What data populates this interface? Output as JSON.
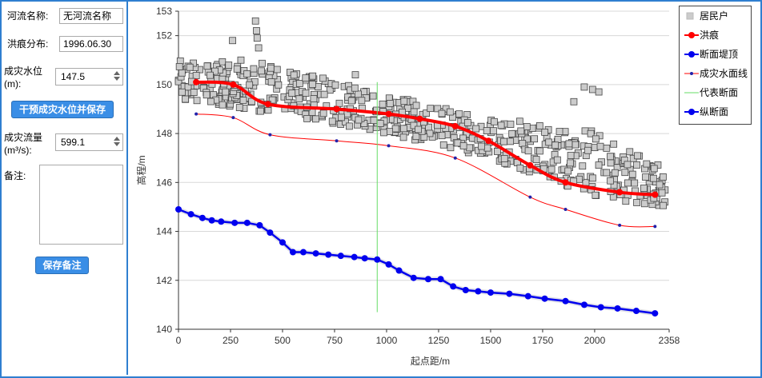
{
  "form": {
    "river_name_label": "河流名称:",
    "river_name_value": "无河流名称",
    "flood_mark_label": "洪痕分布:",
    "flood_mark_value": "1996.06.30",
    "disaster_level_label": "成灾水位",
    "disaster_level_unit": "(m):",
    "disaster_level_value": "147.5",
    "intervene_button": "干预成灾水位并保存",
    "disaster_flow_label": "成灾流量",
    "disaster_flow_unit": "(m³/s):",
    "disaster_flow_value": "599.1",
    "remark_label": "备注:",
    "save_remark_button": "保存备注"
  },
  "colors": {
    "border": "#2f7fd0",
    "flood_mark": "#ff0000",
    "embankment": "#0000ee",
    "water_surface": "#ff0000",
    "rep_section": "#66dd66",
    "profile": "#0000ee",
    "resident": "#cccccc"
  },
  "chart_data": {
    "type": "line",
    "title": "",
    "xlabel": "起点距/m",
    "ylabel": "高程/m",
    "xlim": [
      0,
      2358
    ],
    "ylim": [
      140,
      153
    ],
    "xticks": [
      0,
      250,
      500,
      750,
      1000,
      1250,
      1500,
      1750,
      2000,
      2358
    ],
    "yticks": [
      140,
      142,
      144,
      146,
      148,
      150,
      152,
      153
    ],
    "legend": [
      "居民户",
      "洪痕",
      "断面堤顶",
      "成灾水面线",
      "代表断面",
      "纵断面"
    ],
    "flood_marks": {
      "name": "洪痕",
      "x": [
        85,
        263,
        430,
        760,
        1010,
        1160,
        1330,
        1490,
        1690,
        1860,
        2120,
        2290
      ],
      "y": [
        150.1,
        150.0,
        149.2,
        149.0,
        148.8,
        148.6,
        148.3,
        147.7,
        146.7,
        146.0,
        145.6,
        145.5
      ]
    },
    "water_surface": {
      "name": "成灾水面线",
      "x": [
        85,
        263,
        440,
        760,
        1010,
        1330,
        1690,
        1860,
        2120,
        2290
      ],
      "y": [
        148.8,
        148.65,
        147.95,
        147.7,
        147.5,
        147.0,
        145.4,
        144.9,
        144.25,
        144.2
      ]
    },
    "representative_section": {
      "name": "代表断面",
      "x": 955,
      "y_range": [
        140.7,
        150.1
      ]
    },
    "profile": {
      "name": "纵断面",
      "x": [
        0,
        60,
        115,
        160,
        205,
        270,
        330,
        390,
        440,
        500,
        550,
        600,
        660,
        720,
        780,
        845,
        895,
        955,
        1010,
        1060,
        1130,
        1200,
        1260,
        1320,
        1380,
        1440,
        1500,
        1590,
        1680,
        1760,
        1860,
        1950,
        2030,
        2110,
        2200,
        2290
      ],
      "y": [
        144.9,
        144.7,
        144.55,
        144.45,
        144.4,
        144.35,
        144.35,
        144.25,
        143.95,
        143.55,
        143.15,
        143.15,
        143.1,
        143.05,
        143.0,
        142.95,
        142.9,
        142.85,
        142.65,
        142.4,
        142.1,
        142.05,
        142.05,
        141.75,
        141.6,
        141.55,
        141.5,
        141.45,
        141.35,
        141.25,
        141.15,
        141.0,
        140.9,
        140.85,
        140.75,
        140.65
      ]
    },
    "residents": {
      "name": "居民户",
      "x_range": [
        0,
        2358
      ],
      "count": 620,
      "band_upper_x": [
        0,
        400,
        1000,
        1500,
        2000,
        2358
      ],
      "band_upper_y": [
        151.0,
        150.9,
        149.6,
        148.6,
        148.1,
        146.5
      ],
      "band_lower_x": [
        0,
        400,
        1000,
        1500,
        2000,
        2358
      ],
      "band_lower_y": [
        149.4,
        148.9,
        148.0,
        147.0,
        145.4,
        145.0
      ],
      "outlier_x": [
        370,
        375,
        378,
        260,
        385,
        300,
        850,
        1950,
        1990,
        2020,
        1900,
        1640
      ],
      "outlier_y": [
        152.6,
        152.2,
        151.9,
        151.8,
        151.5,
        151.0,
        150.4,
        149.9,
        149.8,
        149.7,
        149.3,
        148.5
      ]
    }
  }
}
